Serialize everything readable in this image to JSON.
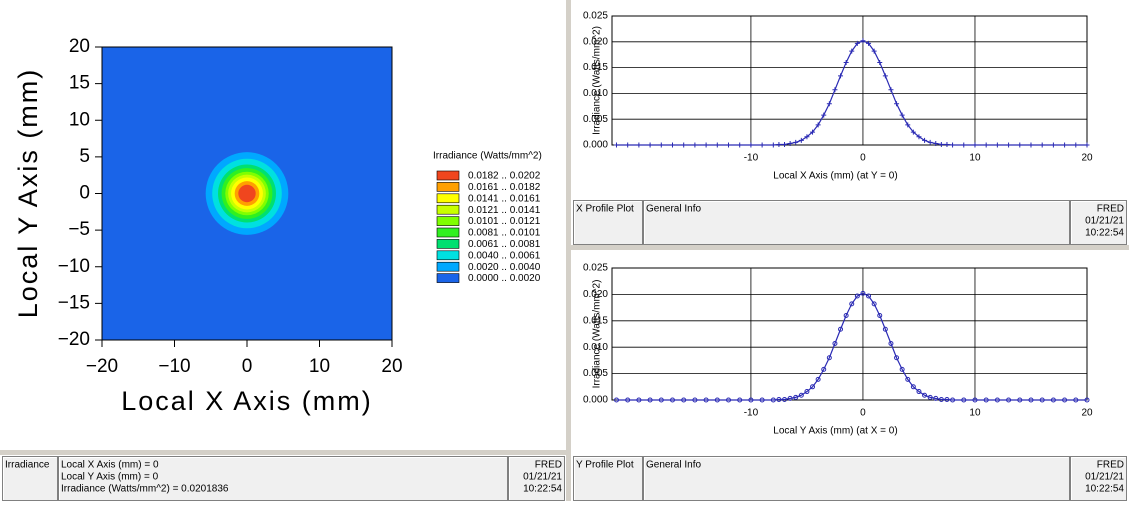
{
  "chart_data": [
    {
      "type": "heatmap",
      "xlabel": "Local X Axis (mm)",
      "ylabel": "Local Y Axis (mm)",
      "xlim": [
        -20,
        20
      ],
      "ylim": [
        -20,
        20
      ],
      "xticks": [
        {
          "value": -20,
          "label": "−20"
        },
        {
          "value": -10,
          "label": "−10"
        },
        0,
        10,
        20
      ],
      "yticks": [
        {
          "value": -20,
          "label": "−20"
        },
        {
          "value": -15,
          "label": "−15"
        },
        {
          "value": -10,
          "label": "−10"
        },
        {
          "value": -5,
          "label": "−5"
        },
        0,
        5,
        10,
        15,
        20
      ],
      "legend_title": "Irradiance (Watts/mm^2)",
      "levels": [
        {
          "name": "0.0182 .. 0.0202",
          "color": "#f0461e",
          "radius": 1.2
        },
        {
          "name": "0.0161 .. 0.0182",
          "color": "#ffa000",
          "radius": 1.7
        },
        {
          "name": "0.0141 .. 0.0161",
          "color": "#ffff00",
          "radius": 2.2
        },
        {
          "name": "0.0121 .. 0.0141",
          "color": "#c8ff00",
          "radius": 2.6
        },
        {
          "name": "0.0101 .. 0.0121",
          "color": "#80ff00",
          "radius": 3.0
        },
        {
          "name": "0.0081 .. 0.0101",
          "color": "#30f020",
          "radius": 3.5
        },
        {
          "name": "0.0061 .. 0.0081",
          "color": "#00e070",
          "radius": 4.0
        },
        {
          "name": "0.0040 .. 0.0061",
          "color": "#00e0e0",
          "radius": 4.8
        },
        {
          "name": "0.0020 .. 0.0040",
          "color": "#00a8ff",
          "radius": 5.7
        },
        {
          "name": "0.0000 .. 0.0020",
          "color": "#1a64e8"
        }
      ]
    },
    {
      "type": "line",
      "xlabel": "Local X Axis (mm) (at Y = 0)",
      "ylabel": "Irradiance (Watts/mm^2)",
      "xlim": [
        -22.4,
        20
      ],
      "ylim": [
        0,
        0.025
      ],
      "xticks": [
        -10,
        0,
        10,
        20
      ],
      "yticks": [
        {
          "value": 0,
          "label": "0.000"
        },
        0.005,
        {
          "value": 0.01,
          "label": "0.010"
        },
        0.015,
        {
          "value": 0.02,
          "label": "0.020"
        },
        0.025
      ],
      "grid": true,
      "marker": "plus",
      "x": [
        -22,
        -21,
        -20,
        -19,
        -18,
        -17,
        -16,
        -15,
        -14,
        -13,
        -12,
        -11,
        -10,
        -9,
        -8,
        -7.5,
        -7,
        -6.5,
        -6,
        -5.5,
        -5,
        -4.5,
        -4,
        -3.5,
        -3,
        -2.5,
        -2,
        -1.5,
        -1,
        -0.5,
        0,
        0.5,
        1,
        1.5,
        2,
        2.5,
        3,
        3.5,
        4,
        4.5,
        5,
        5.5,
        6,
        6.5,
        7,
        7.5,
        8,
        9,
        10,
        11,
        12,
        13,
        14,
        15,
        16,
        17,
        18,
        19,
        20
      ],
      "series": [
        {
          "color": "#2a2ab4",
          "values": [
            0,
            0,
            0,
            0,
            0,
            0,
            0,
            0,
            0,
            0,
            0,
            0,
            0,
            0,
            0,
            0.0001,
            0.0001,
            0.0003,
            0.0005,
            0.0009,
            0.0016,
            0.0025,
            0.0039,
            0.0058,
            0.008,
            0.0107,
            0.0134,
            0.016,
            0.0182,
            0.0197,
            0.0202,
            0.0197,
            0.0182,
            0.016,
            0.0134,
            0.0107,
            0.008,
            0.0058,
            0.0039,
            0.0025,
            0.0016,
            0.0009,
            0.0005,
            0.0003,
            0.0001,
            0.0001,
            0,
            0,
            0,
            0,
            0,
            0,
            0,
            0,
            0,
            0,
            0,
            0,
            0
          ]
        }
      ]
    },
    {
      "type": "line",
      "xlabel": "Local Y Axis (mm) (at X = 0)",
      "ylabel": "Irradiance (Watts/mm^2)",
      "xlim": [
        -22.4,
        20
      ],
      "ylim": [
        0,
        0.025
      ],
      "xticks": [
        -10,
        0,
        10,
        20
      ],
      "yticks": [
        {
          "value": 0,
          "label": "0.000"
        },
        0.005,
        {
          "value": 0.01,
          "label": "0.010"
        },
        0.015,
        {
          "value": 0.02,
          "label": "0.020"
        },
        0.025
      ],
      "grid": true,
      "marker": "circle",
      "x": [
        -22,
        -21,
        -20,
        -19,
        -18,
        -17,
        -16,
        -15,
        -14,
        -13,
        -12,
        -11,
        -10,
        -9,
        -8,
        -7.5,
        -7,
        -6.5,
        -6,
        -5.5,
        -5,
        -4.5,
        -4,
        -3.5,
        -3,
        -2.5,
        -2,
        -1.5,
        -1,
        -0.5,
        0,
        0.5,
        1,
        1.5,
        2,
        2.5,
        3,
        3.5,
        4,
        4.5,
        5,
        5.5,
        6,
        6.5,
        7,
        7.5,
        8,
        9,
        10,
        11,
        12,
        13,
        14,
        15,
        16,
        17,
        18,
        19,
        20
      ],
      "series": [
        {
          "color": "#2a2ab4",
          "values": [
            0,
            0,
            0,
            0,
            0,
            0,
            0,
            0,
            0,
            0,
            0,
            0,
            0,
            0,
            0,
            0.0001,
            0.0001,
            0.0003,
            0.0005,
            0.0009,
            0.0016,
            0.0025,
            0.0039,
            0.0058,
            0.008,
            0.0107,
            0.0134,
            0.016,
            0.0182,
            0.0197,
            0.0202,
            0.0197,
            0.0182,
            0.016,
            0.0134,
            0.0107,
            0.008,
            0.0058,
            0.0039,
            0.0025,
            0.0016,
            0.0009,
            0.0005,
            0.0003,
            0.0001,
            0.0001,
            0,
            0,
            0,
            0,
            0,
            0,
            0,
            0,
            0,
            0,
            0,
            0,
            0
          ]
        }
      ]
    }
  ],
  "panels": [
    {
      "title": "Irradiance",
      "info": [
        "Local X Axis (mm) = 0",
        "Local Y Axis (mm) = 0",
        "Irradiance (Watts/mm^2) = 0.0201836"
      ],
      "app": "FRED",
      "date": "01/21/21",
      "time": "10:22:54"
    },
    {
      "title": "X Profile Plot",
      "info": [
        "General Info"
      ],
      "app": "FRED",
      "date": "01/21/21",
      "time": "10:22:54"
    },
    {
      "title": "Y Profile Plot",
      "info": [
        "General Info"
      ],
      "app": "FRED",
      "date": "01/21/21",
      "time": "10:22:54"
    }
  ]
}
